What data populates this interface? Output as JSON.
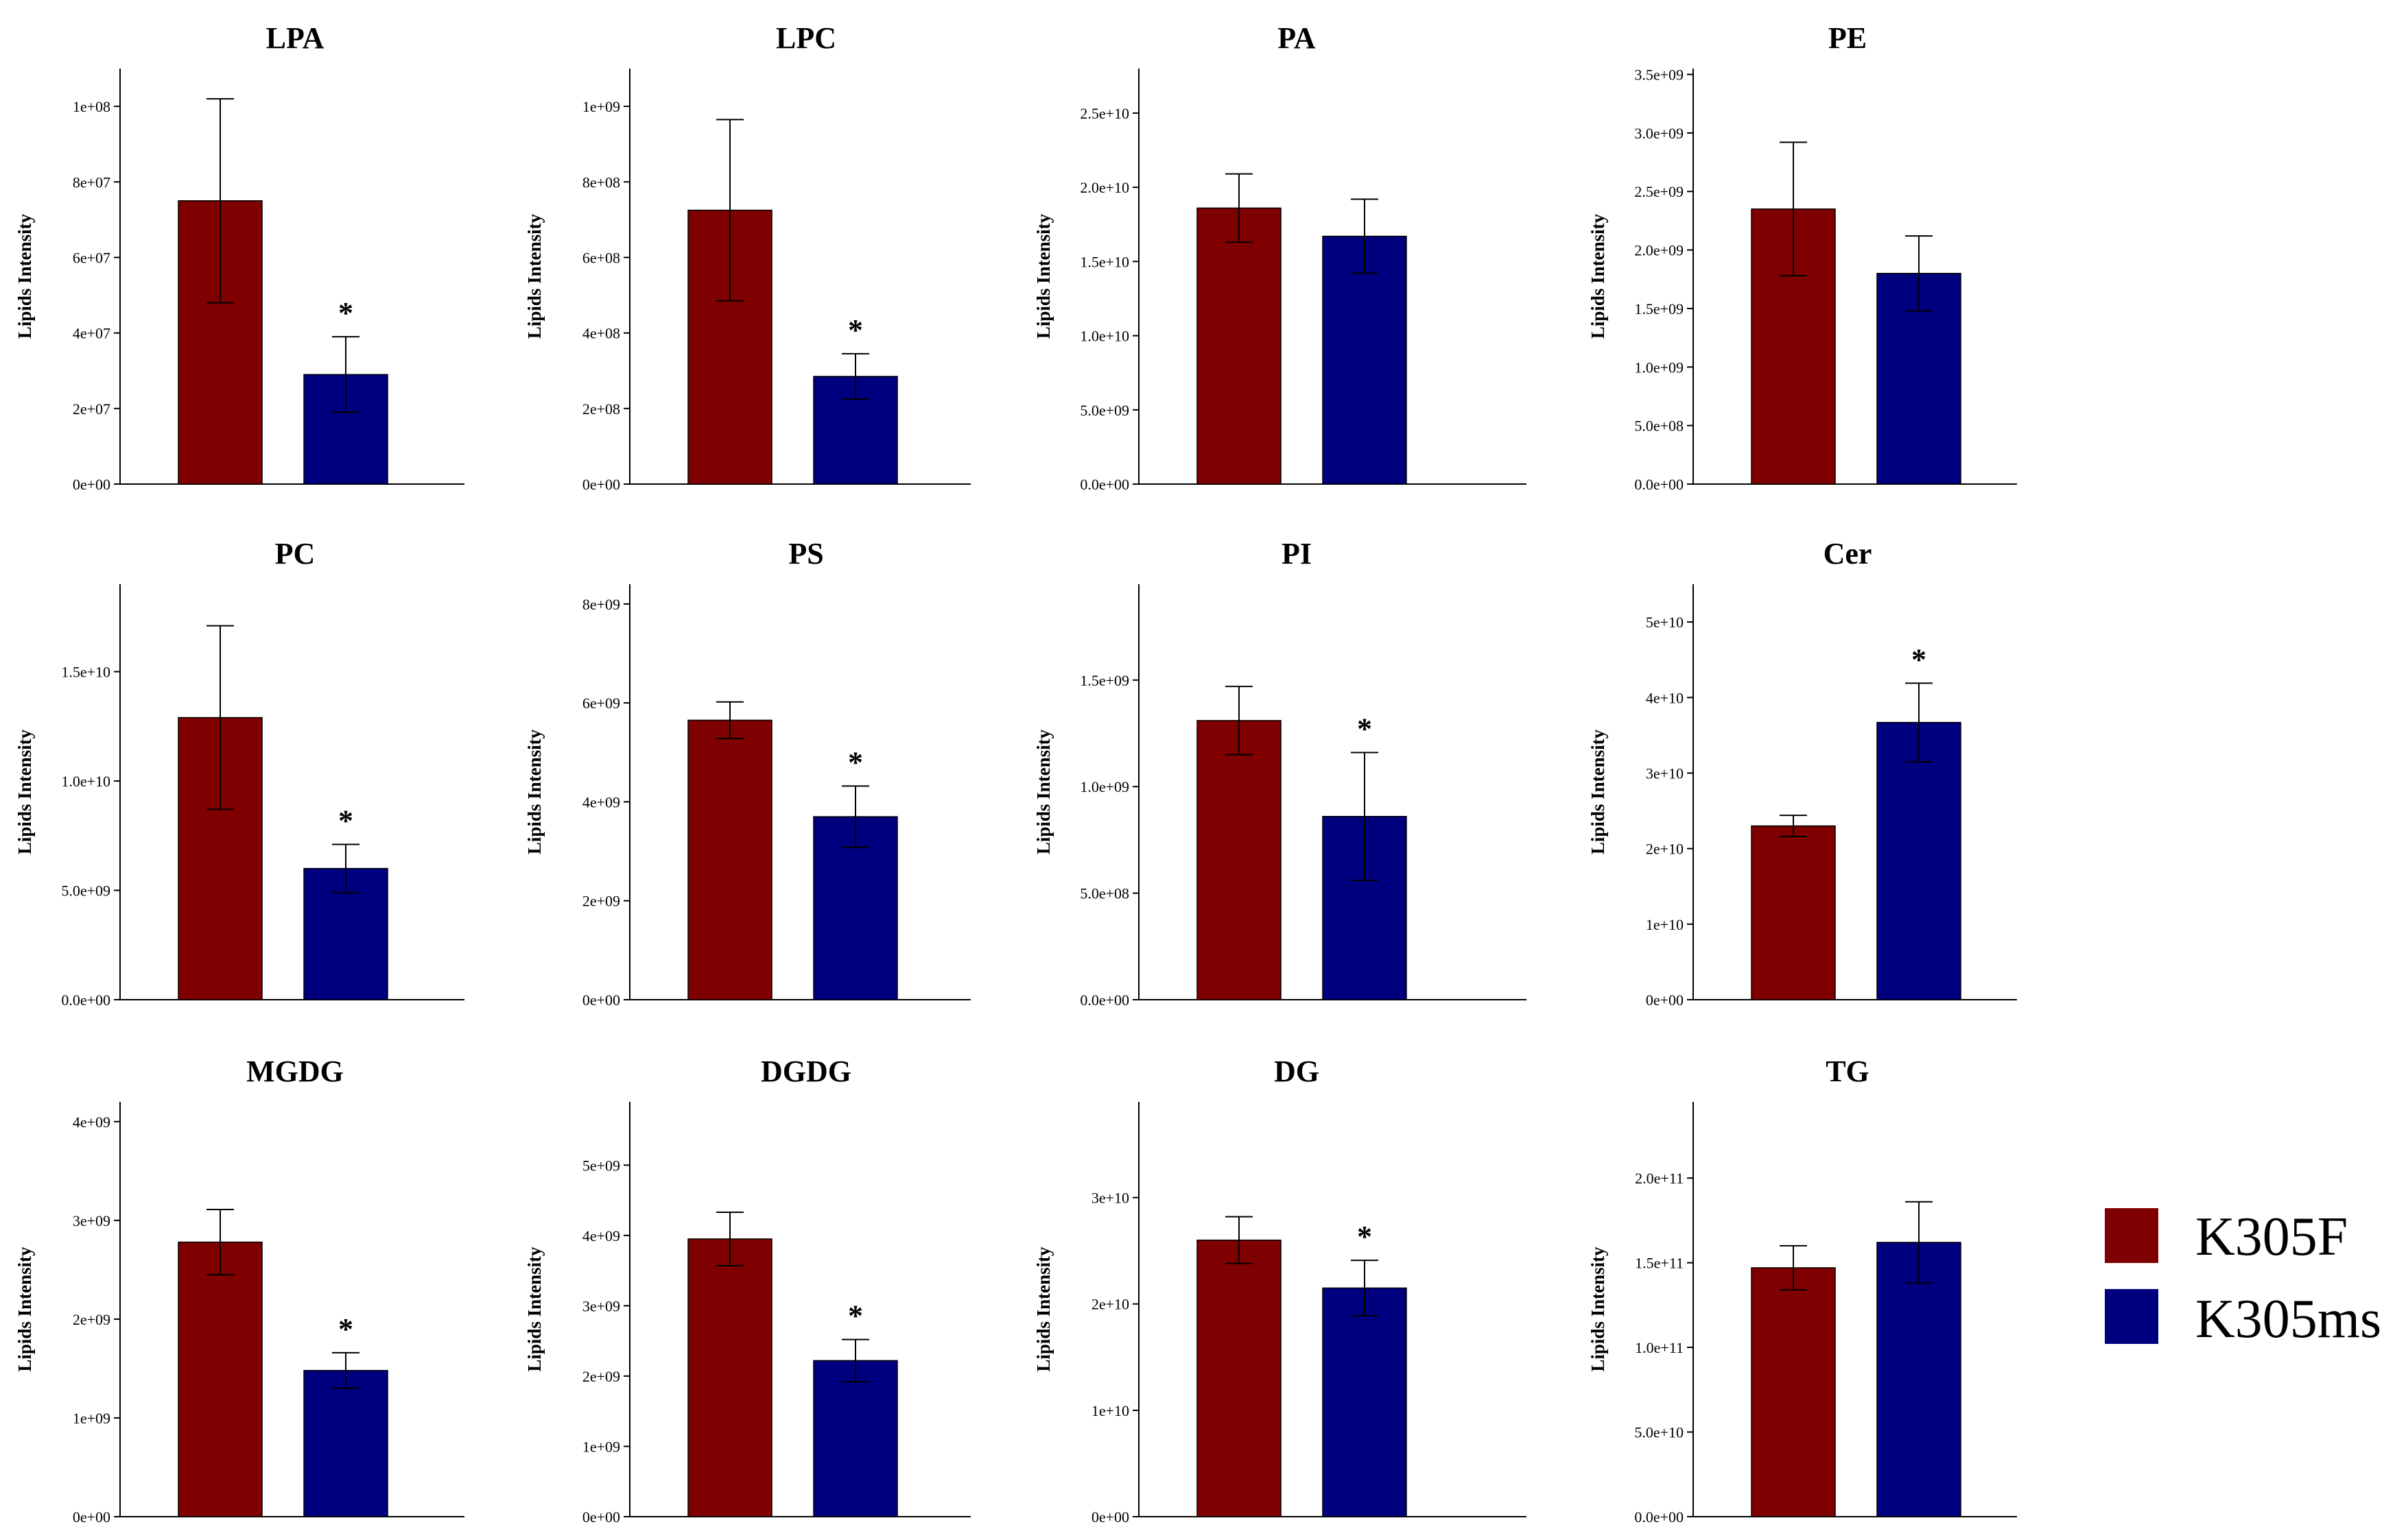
{
  "chart_data": [
    {
      "type": "bar",
      "title": "LPA",
      "ylabel": "Lipids Intensity",
      "categories": [
        "K305F",
        "K305ms"
      ],
      "values": [
        75000000.0,
        29000000.0
      ],
      "errors": [
        27000000.0,
        10000000.0
      ],
      "ylim": [
        0,
        110000000.0
      ],
      "yticks": [
        0,
        20000000.0,
        40000000.0,
        60000000.0,
        80000000.0,
        100000000.0
      ],
      "ytick_labels": [
        "0e+00",
        "2e+07",
        "4e+07",
        "6e+07",
        "8e+07",
        "1e+08"
      ],
      "significance": "*",
      "significant_category": "K305ms"
    },
    {
      "type": "bar",
      "title": "LPC",
      "ylabel": "Lipids Intensity",
      "categories": [
        "K305F",
        "K305ms"
      ],
      "values": [
        725000000.0,
        285000000.0
      ],
      "errors": [
        240000000.0,
        60000000.0
      ],
      "ylim": [
        0,
        1100000000.0
      ],
      "yticks": [
        0,
        200000000.0,
        400000000.0,
        600000000.0,
        800000000.0,
        1000000000.0
      ],
      "ytick_labels": [
        "0e+00",
        "2e+08",
        "4e+08",
        "6e+08",
        "8e+08",
        "1e+09"
      ],
      "significance": "*",
      "significant_category": "K305ms"
    },
    {
      "type": "bar",
      "title": "PA",
      "ylabel": "Lipids Intensity",
      "categories": [
        "K305F",
        "K305ms"
      ],
      "values": [
        18600000000.0,
        16700000000.0
      ],
      "errors": [
        2300000000.0,
        2500000000.0
      ],
      "ylim": [
        0,
        28000000000.0
      ],
      "yticks": [
        0,
        5000000000.0,
        10000000000.0,
        15000000000.0,
        20000000000.0,
        25000000000.0
      ],
      "ytick_labels": [
        "0.0e+00",
        "5.0e+09",
        "1.0e+10",
        "1.5e+10",
        "2.0e+10",
        "2.5e+10"
      ],
      "significance": "",
      "significant_category": ""
    },
    {
      "type": "bar",
      "title": "PE",
      "ylabel": "Lipids Intensity",
      "categories": [
        "K305F",
        "K305ms"
      ],
      "values": [
        2350000000.0,
        1800000000.0
      ],
      "errors": [
        570000000.0,
        320000000.0
      ],
      "ylim": [
        0,
        3550000000.0
      ],
      "yticks": [
        0,
        500000000.0,
        1000000000.0,
        1500000000.0,
        2000000000.0,
        2500000000.0,
        3000000000.0,
        3500000000.0
      ],
      "ytick_labels": [
        "0.0e+00",
        "5.0e+08",
        "1.0e+09",
        "1.5e+09",
        "2.0e+09",
        "2.5e+09",
        "3.0e+09",
        "3.5e+09"
      ],
      "significance": "",
      "significant_category": ""
    },
    {
      "type": "bar",
      "title": "PC",
      "ylabel": "Lipids Intensity",
      "categories": [
        "K305F",
        "K305ms"
      ],
      "values": [
        12900000000.0,
        6000000000.0
      ],
      "errors": [
        4200000000.0,
        1100000000.0
      ],
      "ylim": [
        0,
        19000000000.0
      ],
      "yticks": [
        0,
        5000000000.0,
        10000000000.0,
        15000000000.0
      ],
      "ytick_labels": [
        "0.0e+00",
        "5.0e+09",
        "1.0e+10",
        "1.5e+10"
      ],
      "significance": "*",
      "significant_category": "K305ms"
    },
    {
      "type": "bar",
      "title": "PS",
      "ylabel": "Lipids Intensity",
      "categories": [
        "K305F",
        "K305ms"
      ],
      "values": [
        5650000000.0,
        3700000000.0
      ],
      "errors": [
        370000000.0,
        620000000.0
      ],
      "ylim": [
        0,
        8400000000.0
      ],
      "yticks": [
        0,
        2000000000.0,
        4000000000.0,
        6000000000.0,
        8000000000.0
      ],
      "ytick_labels": [
        "0e+00",
        "2e+09",
        "4e+09",
        "6e+09",
        "8e+09"
      ],
      "significance": "*",
      "significant_category": "K305ms"
    },
    {
      "type": "bar",
      "title": "PI",
      "ylabel": "Lipids Intensity",
      "categories": [
        "K305F",
        "K305ms"
      ],
      "values": [
        1310000000.0,
        860000000.0
      ],
      "errors": [
        160000000.0,
        300000000.0
      ],
      "ylim": [
        0,
        1950000000.0
      ],
      "yticks": [
        0,
        500000000.0,
        1000000000.0,
        1500000000.0
      ],
      "ytick_labels": [
        "0.0e+00",
        "5.0e+08",
        "1.0e+09",
        "1.5e+09"
      ],
      "significance": "*",
      "significant_category": "K305ms"
    },
    {
      "type": "bar",
      "title": "Cer",
      "ylabel": "Lipids Intensity",
      "categories": [
        "K305F",
        "K305ms"
      ],
      "values": [
        23000000000.0,
        36700000000.0
      ],
      "errors": [
        1400000000.0,
        5200000000.0
      ],
      "ylim": [
        0,
        55000000000.0
      ],
      "yticks": [
        0,
        10000000000.0,
        20000000000.0,
        30000000000.0,
        40000000000.0,
        50000000000.0
      ],
      "ytick_labels": [
        "0e+00",
        "1e+10",
        "2e+10",
        "3e+10",
        "4e+10",
        "5e+10"
      ],
      "significance": "*",
      "significant_category": "K305ms"
    },
    {
      "type": "bar",
      "title": "MGDG",
      "ylabel": "Lipids Intensity",
      "categories": [
        "K305F",
        "K305ms"
      ],
      "values": [
        2780000000.0,
        1480000000.0
      ],
      "errors": [
        330000000.0,
        180000000.0
      ],
      "ylim": [
        0,
        4200000000.0
      ],
      "yticks": [
        0,
        1000000000.0,
        2000000000.0,
        3000000000.0,
        4000000000.0
      ],
      "ytick_labels": [
        "0e+00",
        "1e+09",
        "2e+09",
        "3e+09",
        "4e+09"
      ],
      "significance": "*",
      "significant_category": "K305ms"
    },
    {
      "type": "bar",
      "title": "DGDG",
      "ylabel": "Lipids Intensity",
      "categories": [
        "K305F",
        "K305ms"
      ],
      "values": [
        3950000000.0,
        2220000000.0
      ],
      "errors": [
        380000000.0,
        300000000.0
      ],
      "ylim": [
        0,
        5900000000.0
      ],
      "yticks": [
        0,
        1000000000.0,
        2000000000.0,
        3000000000.0,
        4000000000.0,
        5000000000.0
      ],
      "ytick_labels": [
        "0e+00",
        "1e+09",
        "2e+09",
        "3e+09",
        "4e+09",
        "5e+09"
      ],
      "significance": "*",
      "significant_category": "K305ms"
    },
    {
      "type": "bar",
      "title": "DG",
      "ylabel": "Lipids Intensity",
      "categories": [
        "K305F",
        "K305ms"
      ],
      "values": [
        26000000000.0,
        21500000000.0
      ],
      "errors": [
        2200000000.0,
        2600000000.0
      ],
      "ylim": [
        0,
        39000000000.0
      ],
      "yticks": [
        0,
        10000000000.0,
        20000000000.0,
        30000000000.0
      ],
      "ytick_labels": [
        "0e+00",
        "1e+10",
        "2e+10",
        "3e+10"
      ],
      "significance": "*",
      "significant_category": "K305ms"
    },
    {
      "type": "bar",
      "title": "TG",
      "ylabel": "Lipids Intensity",
      "categories": [
        "K305F",
        "K305ms"
      ],
      "values": [
        147000000000.0,
        162000000000.0
      ],
      "errors": [
        13000000000.0,
        24000000000.0
      ],
      "ylim": [
        0,
        245000000000.0
      ],
      "yticks": [
        0,
        50000000000.0,
        100000000000.0,
        150000000000.0,
        200000000000.0
      ],
      "ytick_labels": [
        "0.0e+00",
        "5.0e+10",
        "1.0e+11",
        "1.5e+11",
        "2.0e+11"
      ],
      "significance": "",
      "significant_category": ""
    }
  ],
  "legend": {
    "position": "right",
    "items": [
      {
        "label": "K305F",
        "color": "#7f0000"
      },
      {
        "label": "K305ms",
        "color": "#00007f"
      }
    ]
  },
  "colors": {
    "K305F": "#7f0000",
    "K305ms": "#00007f"
  }
}
